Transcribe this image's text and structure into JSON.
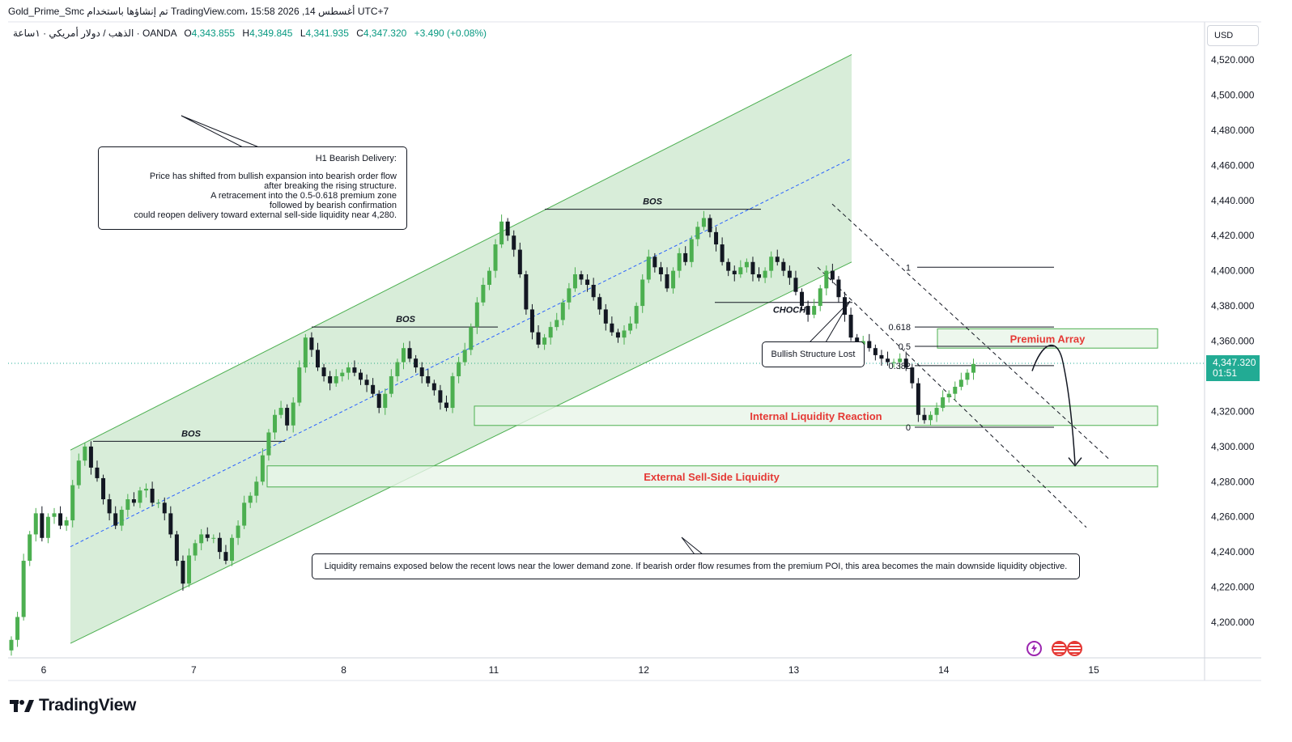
{
  "header": {
    "text": "Gold_Prime_Smc تم إنشاؤها باستخدام TradingView.com، 15:58 2026 ,أغسطس 14 UTC+7"
  },
  "symbol_bar": {
    "name": "الذهب / دولار أمريكي · ١ساعة · OANDA",
    "open_label": "O",
    "open": "4,343.855",
    "high_label": "H",
    "high": "4,349.845",
    "low_label": "L",
    "low": "4,341.935",
    "close_label": "C",
    "close": "4,347.320",
    "change": "+3.490 (+0.08%)"
  },
  "currency_button": "USD",
  "price_badge": {
    "price": "4,347.320",
    "countdown": "01:51"
  },
  "logo_text": "TradingView",
  "colors": {
    "bull": "#4caf50",
    "bear": "#131722",
    "channel_fill": "#4caf50",
    "zone_fill": "#e8f5e9",
    "zone_border": "#4caf50",
    "zone_text": "#e53935",
    "badge": "#22ab94",
    "midline": "#2962ff"
  },
  "annotations": {
    "h1_note": {
      "title": "H1 Bearish Delivery:",
      "lines": [
        "Price has shifted from bullish expansion into bearish order flow",
        "after breaking the rising structure.",
        "A retracement into the 0.5-0.618 premium zone",
        "followed by bearish confirmation",
        "could reopen delivery toward external sell-side liquidity near 4,280."
      ]
    },
    "structure_note": "Bullish Structure Lost",
    "liquidity_note": "Liquidity remains exposed below the recent lows near the lower demand zone. If bearish order flow resumes from the premium POI, this area becomes the main downside liquidity objective.",
    "bos_label": "BOS",
    "choch_label": "CHOCH",
    "zones": {
      "premium": "Premium Array",
      "internal": "Internal Liquidity Reaction",
      "external": "External Sell-Side Liquidity"
    },
    "fib_levels": [
      "1",
      "0.618",
      "0.5",
      "0.382",
      "0"
    ]
  },
  "chart_data": {
    "type": "candlestick",
    "timeframe": "1h",
    "x_tick_labels": [
      "6",
      "7",
      "8",
      "11",
      "12",
      "13",
      "14",
      "15"
    ],
    "y_tick_labels": [
      "4,520.000",
      "4,500.000",
      "4,480.000",
      "4,460.000",
      "4,440.000",
      "4,420.000",
      "4,400.000",
      "4,380.000",
      "4,360.000",
      "4,340.000",
      "4,320.000",
      "4,300.000",
      "4,280.000",
      "4,260.000",
      "4,240.000",
      "4,220.000",
      "4,200.000"
    ],
    "ylim": [
      4185,
      4528
    ],
    "last_price": 4347.32,
    "close_series": [
      4190,
      4203,
      4235,
      4250,
      4262,
      4248,
      4260,
      4262,
      4255,
      4258,
      4278,
      4292,
      4300,
      4288,
      4282,
      4270,
      4262,
      4255,
      4264,
      4270,
      4268,
      4275,
      4276,
      4268,
      4268,
      4262,
      4250,
      4235,
      4222,
      4238,
      4245,
      4250,
      4248,
      4248,
      4240,
      4235,
      4248,
      4255,
      4268,
      4272,
      4280,
      4295,
      4308,
      4318,
      4322,
      4312,
      4325,
      4345,
      4362,
      4355,
      4345,
      4340,
      4336,
      4340,
      4342,
      4345,
      4342,
      4338,
      4335,
      4330,
      4322,
      4330,
      4340,
      4348,
      4356,
      4350,
      4345,
      4340,
      4336,
      4332,
      4325,
      4322,
      4340,
      4348,
      4355,
      4368,
      4382,
      4392,
      4400,
      4415,
      4428,
      4420,
      4412,
      4398,
      4378,
      4365,
      4358,
      4362,
      4368,
      4372,
      4382,
      4390,
      4398,
      4395,
      4392,
      4385,
      4378,
      4370,
      4365,
      4362,
      4366,
      4370,
      4380,
      4395,
      4408,
      4402,
      4398,
      4390,
      4400,
      4410,
      4405,
      4418,
      4425,
      4430,
      4422,
      4415,
      4405,
      4400,
      4398,
      4402,
      4405,
      4398,
      4396,
      4400,
      4408,
      4405,
      4400,
      4396,
      4388,
      4380,
      4375,
      4380,
      4390,
      4400,
      4395,
      4385,
      4375,
      4362,
      4358,
      4360,
      4356,
      4352,
      4350,
      4348,
      4348,
      4350,
      4345,
      4336,
      4318,
      4315,
      4318,
      4322,
      4328,
      4330,
      4334,
      4338,
      4342,
      4347
    ],
    "channel": {
      "type": "ascending",
      "lower_start": 4188,
      "lower_end": 4405,
      "upper_start": 4298,
      "upper_end": 4523
    },
    "bos_levels": [
      4303,
      4368,
      4435
    ],
    "choch_level": 4382,
    "fibonacci": [
      {
        "level": "1",
        "price": 4402
      },
      {
        "level": "0.618",
        "price": 4368
      },
      {
        "level": "0.5",
        "price": 4357
      },
      {
        "level": "0.382",
        "price": 4346
      },
      {
        "level": "0",
        "price": 4311
      }
    ],
    "zones": [
      {
        "name": "Premium Array",
        "from": 4356,
        "to": 4367
      },
      {
        "name": "Internal Liquidity Reaction",
        "from": 4312,
        "to": 4323
      },
      {
        "name": "External Sell-Side Liquidity",
        "from": 4277,
        "to": 4289
      }
    ],
    "projection_target": 4290,
    "grid": false
  }
}
